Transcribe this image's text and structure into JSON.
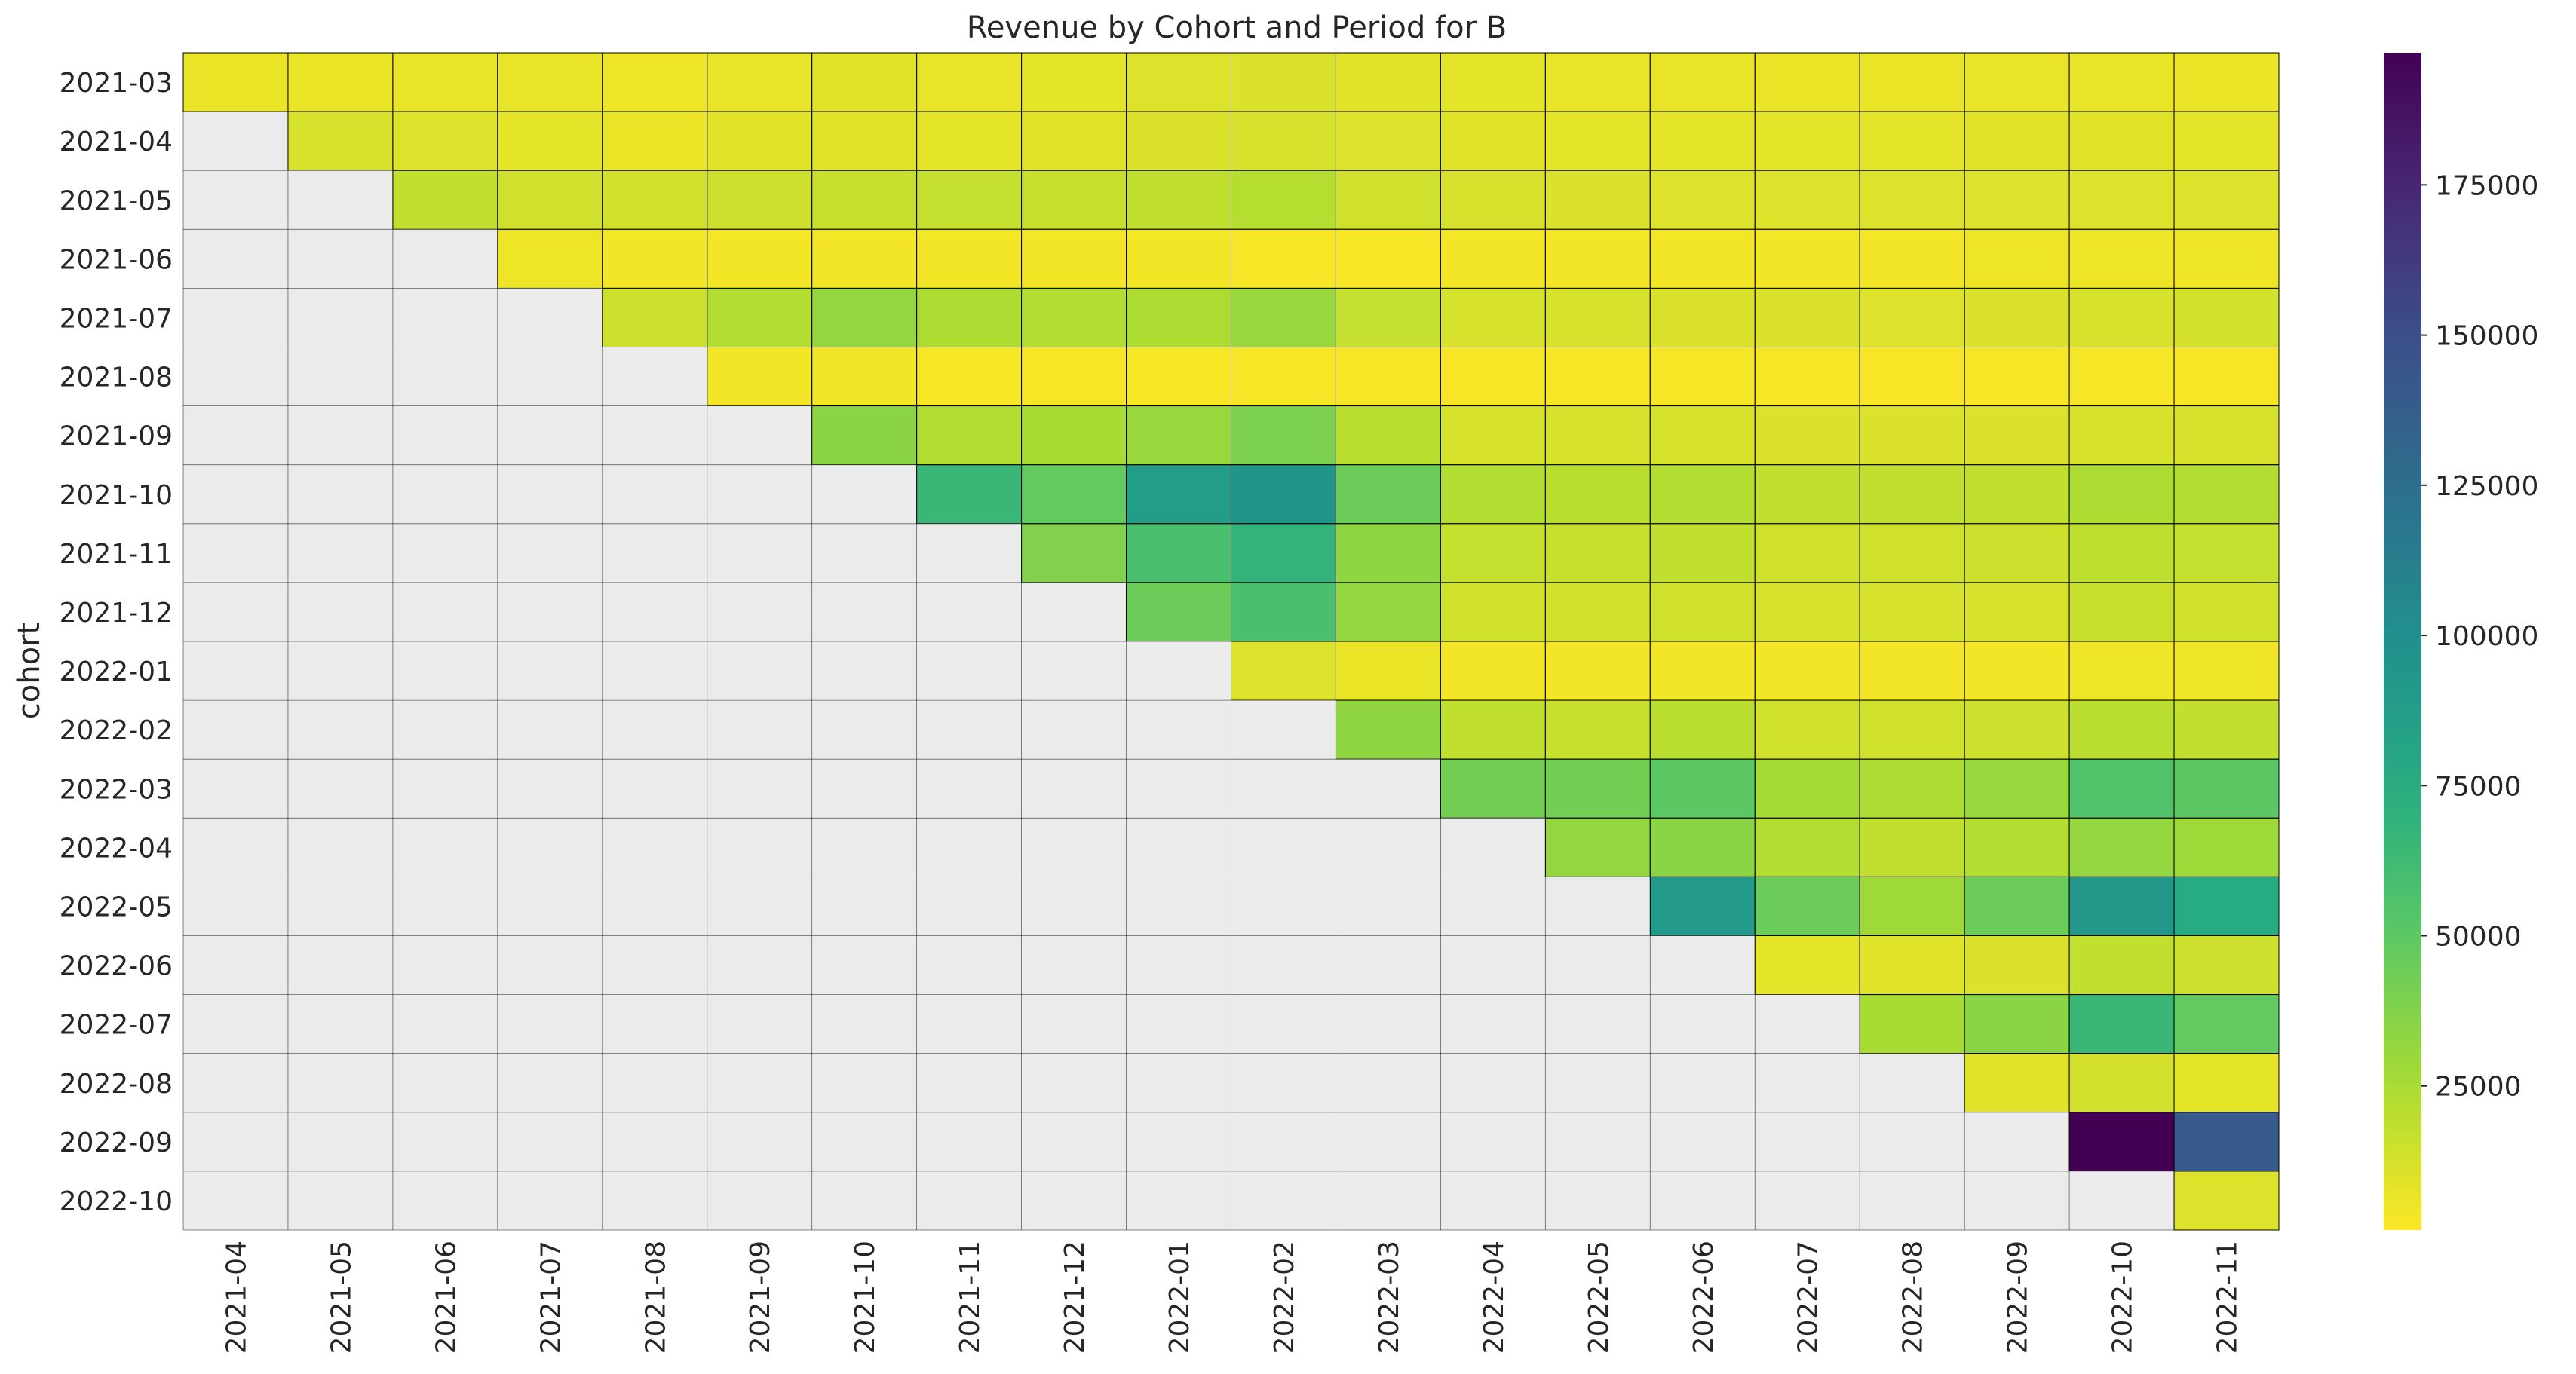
{
  "chart_data": {
    "type": "heatmap",
    "title": "Revenue by Cohort and Period for B",
    "xlabel": "",
    "ylabel": "cohort",
    "x_categories": [
      "2021-04",
      "2021-05",
      "2021-06",
      "2021-07",
      "2021-08",
      "2021-09",
      "2021-10",
      "2021-11",
      "2021-12",
      "2022-01",
      "2022-02",
      "2022-03",
      "2022-04",
      "2022-05",
      "2022-06",
      "2022-07",
      "2022-08",
      "2022-09",
      "2022-10",
      "2022-11"
    ],
    "y_categories": [
      "2021-03",
      "2021-04",
      "2021-05",
      "2021-06",
      "2021-07",
      "2021-08",
      "2021-09",
      "2021-10",
      "2021-11",
      "2021-12",
      "2022-01",
      "2022-02",
      "2022-03",
      "2022-04",
      "2022-05",
      "2022-06",
      "2022-07",
      "2022-08",
      "2022-09",
      "2022-10"
    ],
    "values": [
      [
        6000,
        6000,
        7000,
        7000,
        5000,
        7000,
        9000,
        7000,
        8000,
        10000,
        11000,
        9000,
        8000,
        7000,
        7000,
        6000,
        6000,
        7000,
        7000,
        6000
      ],
      [
        null,
        12000,
        10000,
        8000,
        6000,
        9000,
        9000,
        8000,
        9000,
        11000,
        12000,
        10000,
        9000,
        8000,
        8000,
        8000,
        8000,
        9000,
        9000,
        8000
      ],
      [
        null,
        null,
        18000,
        14000,
        13000,
        15000,
        16000,
        17000,
        16000,
        18000,
        21000,
        14000,
        12000,
        11000,
        10000,
        10000,
        10000,
        10000,
        10000,
        10000
      ],
      [
        null,
        null,
        null,
        5000,
        4000,
        4000,
        4000,
        4000,
        4000,
        4000,
        3000,
        3000,
        4000,
        4000,
        4000,
        4000,
        4000,
        5000,
        5000,
        5000
      ],
      [
        null,
        null,
        null,
        null,
        15000,
        22000,
        32000,
        24000,
        22000,
        24000,
        30000,
        17000,
        12000,
        12000,
        11000,
        11000,
        10000,
        11000,
        12000,
        13000
      ],
      [
        null,
        null,
        null,
        null,
        null,
        4000,
        4000,
        3000,
        3000,
        3000,
        3000,
        3000,
        3000,
        3000,
        3000,
        3000,
        3000,
        3000,
        3000,
        3000
      ],
      [
        null,
        null,
        null,
        null,
        null,
        null,
        35000,
        22000,
        25000,
        30000,
        40000,
        20000,
        12000,
        12000,
        12000,
        11000,
        11000,
        11000,
        12000,
        12000
      ],
      [
        null,
        null,
        null,
        null,
        null,
        null,
        null,
        65000,
        48000,
        88000,
        95000,
        45000,
        22000,
        20000,
        22000,
        18000,
        18000,
        18000,
        24000,
        22000
      ],
      [
        null,
        null,
        null,
        null,
        null,
        null,
        null,
        null,
        38000,
        58000,
        68000,
        33000,
        17000,
        16000,
        18000,
        14000,
        14000,
        15000,
        19000,
        17000
      ],
      [
        null,
        null,
        null,
        null,
        null,
        null,
        null,
        null,
        null,
        45000,
        58000,
        32000,
        14000,
        13000,
        14000,
        12000,
        12000,
        12000,
        16000,
        14000
      ],
      [
        null,
        null,
        null,
        null,
        null,
        null,
        null,
        null,
        null,
        null,
        10000,
        6000,
        4000,
        4000,
        4000,
        4000,
        4000,
        4000,
        5000,
        5000
      ],
      [
        null,
        null,
        null,
        null,
        null,
        null,
        null,
        null,
        null,
        null,
        null,
        33000,
        18000,
        16000,
        20000,
        14000,
        14000,
        15000,
        20000,
        18000
      ],
      [
        null,
        null,
        null,
        null,
        null,
        null,
        null,
        null,
        null,
        null,
        null,
        null,
        42000,
        42000,
        50000,
        26000,
        24000,
        30000,
        55000,
        50000
      ],
      [
        null,
        null,
        null,
        null,
        null,
        null,
        null,
        null,
        null,
        null,
        null,
        null,
        null,
        32000,
        35000,
        22000,
        18000,
        22000,
        32000,
        28000
      ],
      [
        null,
        null,
        null,
        null,
        null,
        null,
        null,
        null,
        null,
        null,
        null,
        null,
        null,
        null,
        90000,
        45000,
        28000,
        45000,
        92000,
        75000
      ],
      [
        null,
        null,
        null,
        null,
        null,
        null,
        null,
        null,
        null,
        null,
        null,
        null,
        null,
        null,
        null,
        8000,
        9000,
        11000,
        18000,
        15000
      ],
      [
        null,
        null,
        null,
        null,
        null,
        null,
        null,
        null,
        null,
        null,
        null,
        null,
        null,
        null,
        null,
        null,
        25000,
        35000,
        65000,
        48000
      ],
      [
        null,
        null,
        null,
        null,
        null,
        null,
        null,
        null,
        null,
        null,
        null,
        null,
        null,
        null,
        null,
        null,
        null,
        9000,
        13000,
        8000
      ],
      [
        null,
        null,
        null,
        null,
        null,
        null,
        null,
        null,
        null,
        null,
        null,
        null,
        null,
        null,
        null,
        null,
        null,
        null,
        197000,
        140000
      ],
      [
        null,
        null,
        null,
        null,
        null,
        null,
        null,
        null,
        null,
        null,
        null,
        null,
        null,
        null,
        null,
        null,
        null,
        null,
        null,
        10000
      ]
    ],
    "colormap": "viridis_r",
    "vmin": 1000,
    "vmax": 197000,
    "colorbar_ticks": [
      25000,
      50000,
      75000,
      100000,
      125000,
      150000,
      175000
    ],
    "missing_color": "#ebebeb",
    "cell_border_color": "#000000",
    "grid": true
  }
}
